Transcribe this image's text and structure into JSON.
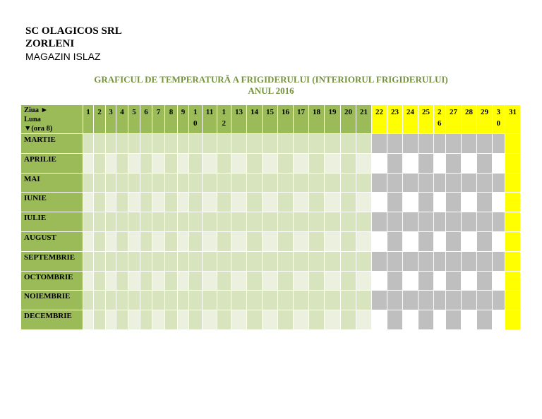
{
  "header": {
    "company": "SC OLAGICOS SRL",
    "city": "ZORLENI",
    "store": "MAGAZIN ISLAZ"
  },
  "title": "GRAFICUL DE TEMPERATURĂ A FRIGIDERULUI (INTERIORUL FRIGIDERULUI)",
  "subtitle": "ANUL 2016",
  "table": {
    "corner": [
      "Ziua ►",
      "Luna",
      "▼(ora 8)"
    ],
    "days": [
      "1",
      "2",
      "3",
      "4",
      "5",
      "6",
      "7",
      "8",
      "9",
      "10",
      "11",
      "12",
      "13",
      "14",
      "15",
      "16",
      "17",
      "18",
      "19",
      "20",
      "21",
      "22",
      "23",
      "24",
      "25",
      "26",
      "27",
      "28",
      "29",
      "30",
      "31"
    ],
    "months": [
      "MARTIE",
      "APRILIE",
      "MAI",
      "IUNIE",
      "IULIE",
      "AUGUST",
      "SEPTEMBRIE",
      "OCTOMBRIE",
      "NOIEMBRIE",
      "DECEMBRIE"
    ]
  }
}
